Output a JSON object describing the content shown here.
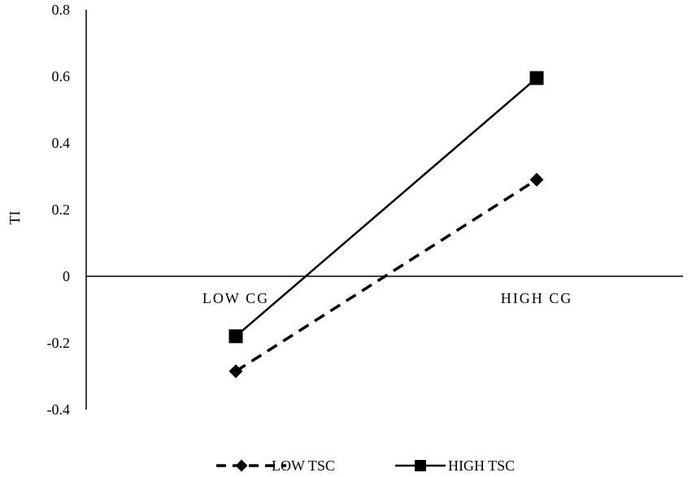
{
  "chart_data": {
    "type": "line",
    "title": "",
    "xlabel": "",
    "ylabel": "TI",
    "ylim": [
      -0.4,
      0.8
    ],
    "yticks": [
      "0.8",
      "0.6",
      "0.4",
      "0.2",
      "0",
      "-0.2",
      "-0.4"
    ],
    "categories": [
      "LOW CG",
      "HIGH CG"
    ],
    "legend_position": "bottom",
    "grid": false,
    "series": [
      {
        "name": "LOW TSC",
        "values": [
          -0.285,
          0.29
        ],
        "marker": "diamond",
        "line_style": "dashed",
        "color": "#000000"
      },
      {
        "name": "HIGH TSC",
        "values": [
          -0.18,
          0.595
        ],
        "marker": "square",
        "line_style": "solid",
        "color": "#000000"
      }
    ]
  }
}
